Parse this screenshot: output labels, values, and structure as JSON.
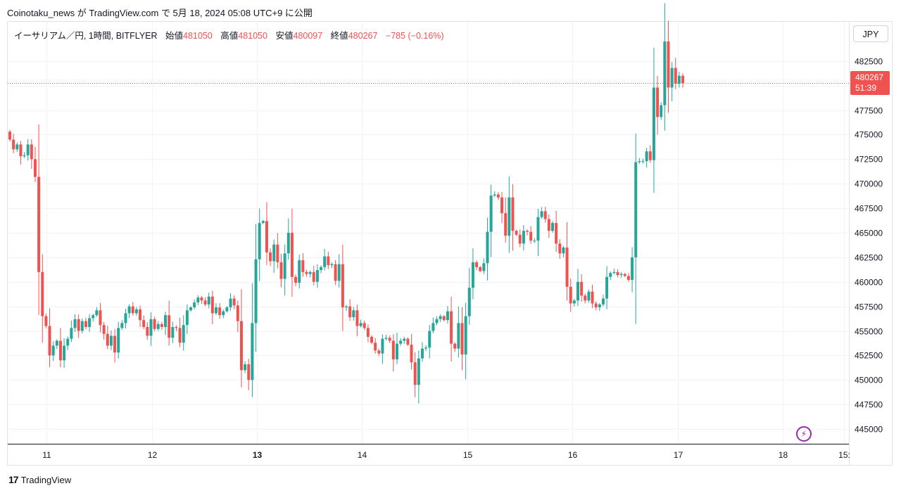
{
  "header": {
    "publish_text": "Coinotaku_news が TradingView.com で 5月 18, 2024 05:08 UTC+9 に公開"
  },
  "legend": {
    "symbol": "イーサリアム／円, 1時間, BITFLYER",
    "open_label": "始値",
    "open_value": "481050",
    "high_label": "高値",
    "high_value": "481050",
    "low_label": "安値",
    "low_value": "480097",
    "close_label": "終値",
    "close_value": "480267",
    "change": "−785 (−0.16%)"
  },
  "currency_button": "JPY",
  "last_price": {
    "value": "480267",
    "countdown": "51:39"
  },
  "footer": {
    "brand": "TradingView",
    "mark": "17"
  },
  "colors": {
    "up": "#26a69a",
    "down": "#ef5350",
    "grid": "#f0f3fa",
    "axis_text": "#131722"
  },
  "icons": {
    "alert": "lightning-icon"
  },
  "chart_data": {
    "type": "candlestick",
    "title": "",
    "y_range": [
      443500,
      486500
    ],
    "y_ticks": [
      445000,
      447500,
      450000,
      452500,
      455000,
      457500,
      460000,
      462500,
      465000,
      467500,
      470000,
      472500,
      475000,
      477500,
      480000,
      482500
    ],
    "x_ticks": [
      {
        "label": "11",
        "x": 11.0,
        "bold": false
      },
      {
        "label": "12",
        "x": 12.0,
        "bold": false
      },
      {
        "label": "13",
        "x": 13.0,
        "bold": true
      },
      {
        "label": "14",
        "x": 14.0,
        "bold": false
      },
      {
        "label": "15",
        "x": 15.0,
        "bold": false
      },
      {
        "label": "16",
        "x": 16.0,
        "bold": false
      },
      {
        "label": "17",
        "x": 17.0,
        "bold": false
      },
      {
        "label": "18",
        "x": 18.0,
        "bold": false
      },
      {
        "label": "15:",
        "x": 18.58,
        "bold": false
      }
    ],
    "x_range": [
      10.63,
      18.63
    ],
    "last_close": 480267,
    "closes": [
      474500,
      473500,
      474000,
      472800,
      472900,
      474000,
      472500,
      470700,
      461000,
      456500,
      455500,
      452500,
      453500,
      454000,
      452000,
      453500,
      454200,
      455300,
      456200,
      455000,
      456000,
      455400,
      456300,
      456600,
      457100,
      455600,
      454700,
      453500,
      454500,
      452800,
      455300,
      455800,
      456800,
      457500,
      456800,
      457200,
      456100,
      455400,
      454500,
      456200,
      455200,
      455700,
      455400,
      456600,
      454300,
      455400,
      455300,
      453800,
      455600,
      457100,
      457400,
      457900,
      458400,
      458100,
      457700,
      458500,
      456800,
      457400,
      456600,
      457000,
      457400,
      458300,
      457600,
      456000,
      451000,
      451600,
      450000,
      455800,
      462300,
      466000,
      466200,
      463000,
      462100,
      463800,
      462000,
      460300,
      462900,
      465000,
      460500,
      459900,
      462200,
      461000,
      460800,
      461000,
      460000,
      461200,
      461500,
      462600,
      461700,
      461800,
      460100,
      461800,
      457400,
      457500,
      456400,
      457100,
      455500,
      455800,
      455300,
      454400,
      453800,
      453000,
      452700,
      454200,
      454300,
      454000,
      452100,
      453700,
      454000,
      454200,
      453600,
      451800,
      449500,
      452200,
      453200,
      453300,
      455000,
      455800,
      456200,
      456500,
      456100,
      457000,
      453700,
      453200,
      455800,
      452600,
      456500,
      459400,
      462000,
      461500,
      461100,
      461900,
      465100,
      468800,
      468900,
      468600,
      467000,
      464700,
      468600,
      465200,
      464800,
      463900,
      465200,
      465100,
      464200,
      464200,
      466600,
      467200,
      466400,
      465200,
      466000,
      463900,
      462900,
      463500,
      459500,
      457800,
      458100,
      460000,
      458600,
      458100,
      459000,
      457800,
      457400,
      457700,
      458300,
      460500,
      460900,
      461000,
      460700,
      460800,
      460600,
      460200,
      462500,
      472200,
      472300,
      472300,
      473300,
      472400,
      479800,
      476800,
      478000,
      484500,
      479800,
      481800,
      480200,
      481000,
      480267
    ],
    "open_first": 475300
  }
}
